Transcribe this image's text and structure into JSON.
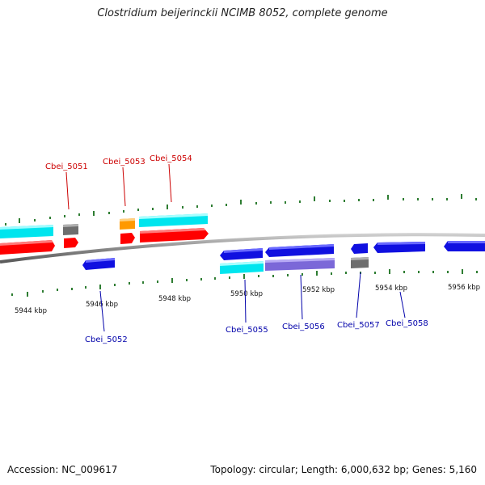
{
  "title": "Clostridium beijerinckii NCIMB 8052, complete genome",
  "accession": "Accession: NC_009617",
  "topology": "Topology: circular; Length: 6,000,632 bp; Genes: 5,160",
  "colors": {
    "backbone": "#8a8a8a",
    "tick": "#2e7d32",
    "gene_label_top": "#cc0000",
    "gene_label_bottom": "#0000aa",
    "cds": "#ff0000",
    "gene": "#00e5ee",
    "cds_bottom": "#1010e0",
    "gene_bottom_purple": "#7b68d8",
    "pseudo": "#777777",
    "rna": "#ff9900"
  },
  "scale_labels": [
    "5944 kbp",
    "5946 kbp",
    "5948 kbp",
    "5950 kbp",
    "5952 kbp",
    "5954 kbp",
    "5956 kbp"
  ],
  "gene_labels_top": [
    "Cbei_5051",
    "Cbei_5053",
    "Cbei_5054"
  ],
  "gene_labels_bottom": [
    "Cbei_5052",
    "Cbei_5055",
    "Cbei_5056",
    "Cbei_5057",
    "Cbei_5058"
  ]
}
